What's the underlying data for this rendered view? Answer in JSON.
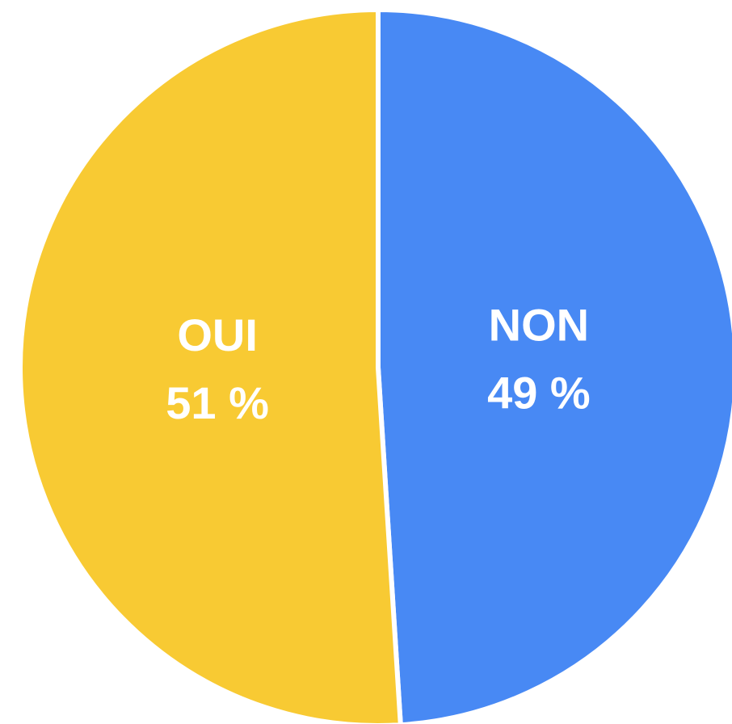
{
  "chart_data": {
    "type": "pie",
    "categories": [
      "NON",
      "OUI"
    ],
    "values": [
      49,
      51
    ],
    "value_labels": [
      "49 %",
      "51 %"
    ],
    "colors": [
      "#4889f4",
      "#f8ca33"
    ]
  }
}
